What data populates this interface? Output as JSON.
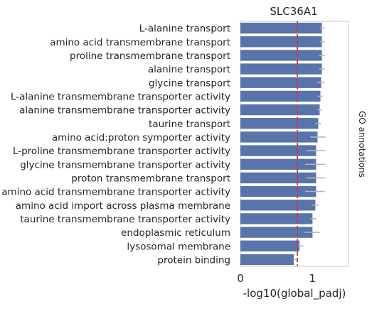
{
  "chart_data": {
    "type": "bar",
    "orientation": "horizontal",
    "title": "SLC36A1",
    "xlabel": "-log10(global_padj)",
    "ylabel": "",
    "side_label": "GO annotations",
    "xlim": [
      0,
      1.5
    ],
    "xticks": [
      "0",
      "1"
    ],
    "reference_line": 0.79,
    "grid": false,
    "categories": [
      "L-alanine transport",
      "amino acid transmembrane transport",
      "proline transmembrane transport",
      "alanine transport",
      "glycine transport",
      "L-alanine transmembrane transporter activity",
      "alanine transmembrane transporter activity",
      "taurine transport",
      "amino acid:proton symporter activity",
      "L-proline transmembrane transporter activity",
      "glycine transmembrane transporter activity",
      "proton transmembrane transport",
      "amino acid transmembrane transporter activity",
      "amino acid import across plasma membrane",
      "taurine transmembrane transporter activity",
      "endoplasmic reticulum",
      "lysosomal membrane",
      "protein binding"
    ],
    "values": [
      1.13,
      1.13,
      1.13,
      1.13,
      1.12,
      1.11,
      1.1,
      1.08,
      1.07,
      1.05,
      1.05,
      1.05,
      1.05,
      1.04,
      1.0,
      1.0,
      0.82,
      0.74
    ],
    "error_low": [
      1.1,
      1.1,
      1.09,
      1.09,
      1.07,
      1.07,
      1.07,
      1.04,
      0.97,
      0.91,
      0.9,
      0.91,
      0.9,
      0.99,
      0.97,
      0.89,
      0.8,
      0.73
    ],
    "error_high": [
      1.17,
      1.17,
      1.17,
      1.17,
      1.17,
      1.14,
      1.13,
      1.12,
      1.18,
      1.18,
      1.18,
      1.18,
      1.17,
      1.09,
      1.05,
      1.1,
      0.87,
      0.78
    ],
    "colors": {
      "bar": "#5874a8",
      "error": "#b5b5b5",
      "reference": "#d0393a",
      "frame": "#c9c9c9"
    }
  }
}
